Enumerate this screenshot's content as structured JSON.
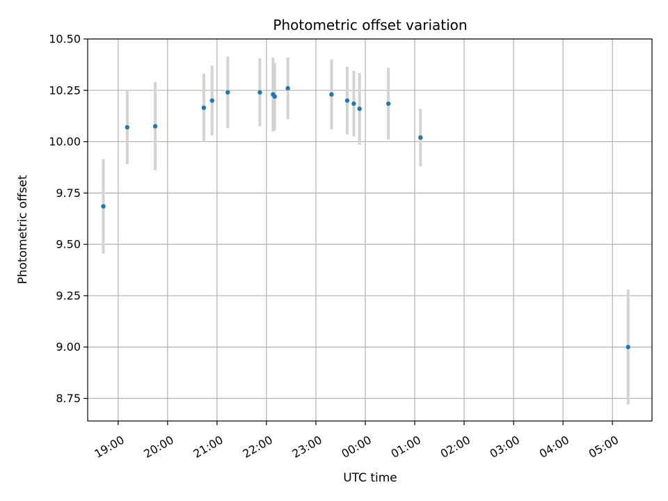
{
  "chart_data": {
    "type": "scatter",
    "title": "Photometric offset variation",
    "xlabel": "UTC time",
    "ylabel": "Photometric offset",
    "xlim": [
      "2000-01-01 18:23",
      "2000-01-02 05:48"
    ],
    "ylim": [
      8.64,
      10.5
    ],
    "grid": true,
    "x_ticks": [
      {
        "time": "2000-01-01 19:00",
        "label": "19:00"
      },
      {
        "time": "2000-01-01 20:00",
        "label": "20:00"
      },
      {
        "time": "2000-01-01 21:00",
        "label": "21:00"
      },
      {
        "time": "2000-01-01 22:00",
        "label": "22:00"
      },
      {
        "time": "2000-01-01 23:00",
        "label": "23:00"
      },
      {
        "time": "2000-01-02 00:00",
        "label": "00:00"
      },
      {
        "time": "2000-01-02 01:00",
        "label": "01:00"
      },
      {
        "time": "2000-01-02 02:00",
        "label": "02:00"
      },
      {
        "time": "2000-01-02 03:00",
        "label": "03:00"
      },
      {
        "time": "2000-01-02 04:00",
        "label": "04:00"
      },
      {
        "time": "2000-01-02 05:00",
        "label": "05:00"
      }
    ],
    "y_ticks": [
      {
        "value": 8.75,
        "label": "8.75"
      },
      {
        "value": 9.0,
        "label": "9.00"
      },
      {
        "value": 9.25,
        "label": "9.25"
      },
      {
        "value": 9.5,
        "label": "9.50"
      },
      {
        "value": 9.75,
        "label": "9.75"
      },
      {
        "value": 10.0,
        "label": "10.00"
      },
      {
        "value": 10.25,
        "label": "10.25"
      },
      {
        "value": 10.5,
        "label": "10.50"
      }
    ],
    "point_color": "#1f77b4",
    "error_color": "#d3d3d3",
    "points": [
      {
        "time": "2000-01-01 18:42",
        "y": 9.685,
        "err": 0.23
      },
      {
        "time": "2000-01-01 19:11",
        "y": 10.07,
        "err": 0.18
      },
      {
        "time": "2000-01-01 19:45",
        "y": 10.075,
        "err": 0.215
      },
      {
        "time": "2000-01-01 20:44",
        "y": 10.165,
        "err": 0.165
      },
      {
        "time": "2000-01-01 20:54",
        "y": 10.2,
        "err": 0.17
      },
      {
        "time": "2000-01-01 21:13",
        "y": 10.24,
        "err": 0.175
      },
      {
        "time": "2000-01-01 21:52",
        "y": 10.24,
        "err": 0.165
      },
      {
        "time": "2000-01-01 22:08",
        "y": 10.23,
        "err": 0.18
      },
      {
        "time": "2000-01-01 22:10",
        "y": 10.22,
        "err": 0.165
      },
      {
        "time": "2000-01-01 22:26",
        "y": 10.26,
        "err": 0.15
      },
      {
        "time": "2000-01-01 23:19",
        "y": 10.23,
        "err": 0.17
      },
      {
        "time": "2000-01-01 23:38",
        "y": 10.2,
        "err": 0.165
      },
      {
        "time": "2000-01-01 23:46",
        "y": 10.185,
        "err": 0.16
      },
      {
        "time": "2000-01-01 23:53",
        "y": 10.16,
        "err": 0.175
      },
      {
        "time": "2000-01-02 00:28",
        "y": 10.185,
        "err": 0.175
      },
      {
        "time": "2000-01-02 01:07",
        "y": 10.02,
        "err": 0.14
      },
      {
        "time": "2000-01-02 05:19",
        "y": 9.0,
        "err": 0.28
      }
    ]
  }
}
